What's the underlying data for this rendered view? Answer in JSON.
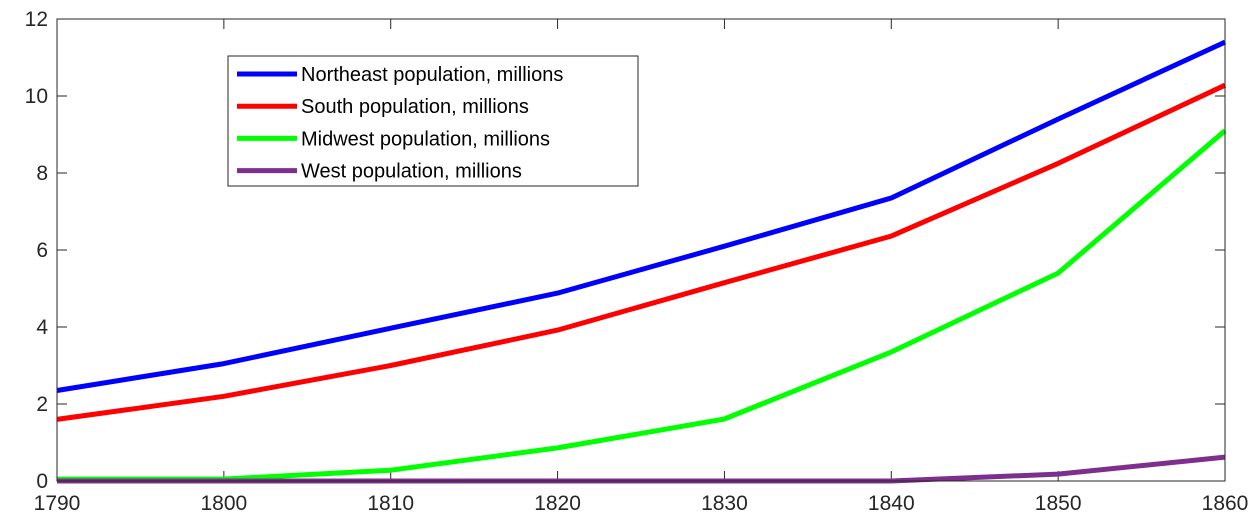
{
  "chart_data": {
    "type": "line",
    "title": "",
    "xlabel": "",
    "ylabel": "",
    "x": [
      1790,
      1800,
      1810,
      1820,
      1830,
      1840,
      1850,
      1860
    ],
    "xlim": [
      1790,
      1860
    ],
    "ylim": [
      0,
      12
    ],
    "xticks": [
      1790,
      1800,
      1810,
      1820,
      1830,
      1840,
      1850,
      1860
    ],
    "yticks": [
      0,
      2,
      4,
      6,
      8,
      10,
      12
    ],
    "grid": false,
    "legend_position": "top-left",
    "series": [
      {
        "name": "Northeast population, millions",
        "color": "#0000ff",
        "values": [
          2.35,
          3.05,
          3.97,
          4.88,
          6.1,
          7.35,
          9.4,
          11.4
        ]
      },
      {
        "name": "South population, millions",
        "color": "#ff0000",
        "values": [
          1.6,
          2.2,
          3.0,
          3.92,
          5.15,
          6.36,
          8.25,
          10.28
        ]
      },
      {
        "name": "Midwest population, millions",
        "color": "#00ff00",
        "values": [
          0.05,
          0.05,
          0.28,
          0.86,
          1.61,
          3.35,
          5.4,
          9.1
        ]
      },
      {
        "name": "West population, millions",
        "color": "#7e2f8e",
        "values": [
          0.0,
          0.0,
          0.0,
          0.0,
          0.0,
          0.0,
          0.18,
          0.62
        ]
      }
    ]
  }
}
